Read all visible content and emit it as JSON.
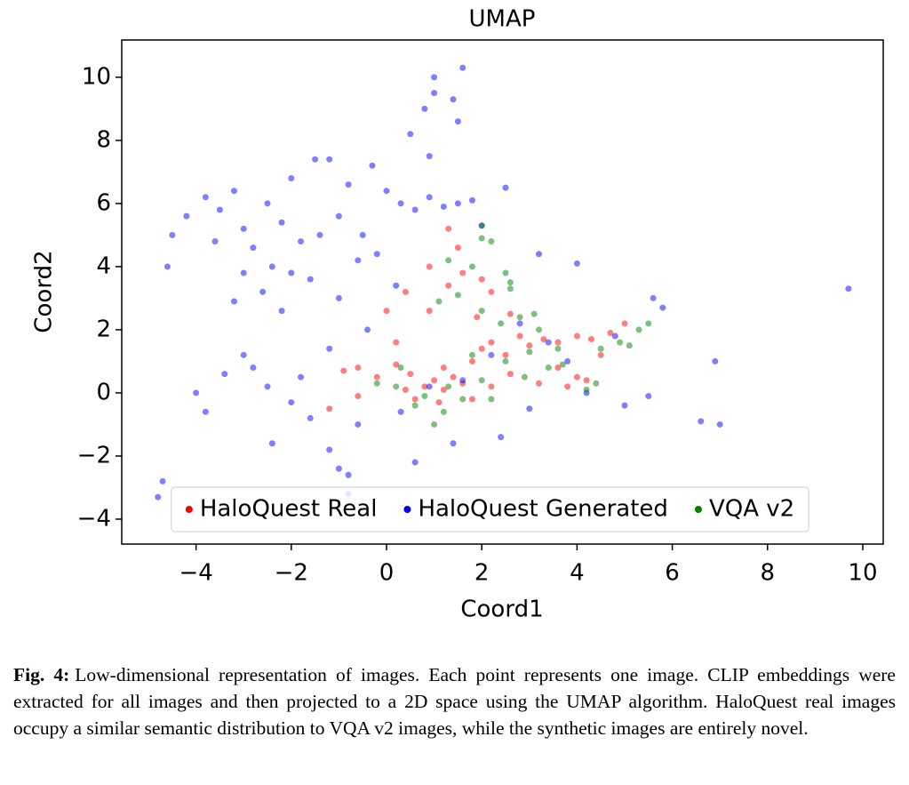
{
  "chart_data": {
    "type": "scatter",
    "title": "UMAP",
    "x_label": "Coord1",
    "y_label": "Coord2",
    "xlim": [
      -5.56,
      10.43
    ],
    "ylim": [
      -4.79,
      11.18
    ],
    "xticks": [
      {
        "value": -4,
        "label": "−4"
      },
      {
        "value": -2,
        "label": "−2"
      },
      0,
      2,
      4,
      6,
      8,
      10
    ],
    "yticks": [
      {
        "value": -4,
        "label": "−4"
      },
      {
        "value": -2,
        "label": "−2"
      },
      0,
      2,
      4,
      6,
      8,
      10
    ],
    "legend": "lower center",
    "grid": false,
    "series": [
      {
        "name": "HaloQuest Real",
        "color": "#ff0000",
        "x": [
          -0.9,
          -0.6,
          -0.2,
          0.2,
          0.5,
          0.8,
          1.0,
          1.2,
          1.4,
          1.6,
          1.8,
          2.0,
          2.2,
          2.5,
          2.8,
          3.0,
          3.3,
          3.6,
          4.0,
          4.3,
          4.7,
          5.0,
          4.5,
          4.0,
          3.6,
          3.2,
          2.6,
          2.2,
          1.8,
          1.1,
          0.6,
          0.9,
          1.3,
          1.6,
          2.0,
          2.2,
          1.5,
          1.3,
          0.9,
          0.4,
          0.0,
          -1.2,
          -0.6,
          0.2,
          2.6,
          1.9,
          3.8,
          4.2,
          1.2,
          0.4
        ],
        "y": [
          0.7,
          0.8,
          0.5,
          0.9,
          0.6,
          0.2,
          0.4,
          0.1,
          0.5,
          0.3,
          1.0,
          1.4,
          1.6,
          1.2,
          1.8,
          1.5,
          1.7,
          1.6,
          1.8,
          1.7,
          1.9,
          2.2,
          1.2,
          0.5,
          0.8,
          0.3,
          0.6,
          0.2,
          -0.2,
          -0.3,
          -0.2,
          2.6,
          3.4,
          3.8,
          3.6,
          3.2,
          4.6,
          5.2,
          4.0,
          3.2,
          2.6,
          -0.5,
          -0.1,
          1.6,
          2.5,
          2.4,
          0.2,
          0.4,
          0.8,
          0.1
        ]
      },
      {
        "name": "HaloQuest Generated",
        "color": "#0000ff",
        "x": [
          -4.5,
          -4.2,
          -3.8,
          -3.5,
          -3.2,
          -3.0,
          -2.8,
          -2.5,
          -2.2,
          -2.0,
          -1.8,
          -1.5,
          -1.2,
          -1.0,
          -0.8,
          -0.5,
          -0.2,
          0,
          0.3,
          0.6,
          0.9,
          1.2,
          1.5,
          1.8,
          -3.6,
          -3.0,
          -2.6,
          -2.2,
          -1.6,
          -1.0,
          -0.6,
          0.2,
          -4.6,
          -3.2,
          -2.4,
          -1.4,
          -0.3,
          0.5,
          0.8,
          1.0,
          1.0,
          1.6,
          1.4,
          0.9,
          1.5,
          -3.0,
          -2.8,
          -3.4,
          -2.5,
          -2.0,
          -1.8,
          -4.0,
          -3.8,
          -2.4,
          -1.6,
          -1.2,
          -1.0,
          -0.8,
          -0.6,
          -4.7,
          -4.8,
          -0.8,
          0.3,
          0.9,
          1.6,
          2.2,
          2.8,
          3.4,
          3.8,
          4.0,
          3.2,
          2.5,
          2.0,
          4.8,
          5.6,
          5.8,
          5.0,
          5.5,
          4.2,
          3.0,
          2.4,
          1.4,
          6.6,
          7.0,
          6.9,
          9.7,
          0.6,
          -2.0,
          -1.2,
          -0.4
        ],
        "y": [
          5.0,
          5.6,
          6.2,
          5.8,
          6.4,
          5.2,
          4.6,
          6.0,
          5.4,
          6.8,
          4.8,
          7.4,
          7.4,
          5.6,
          6.6,
          5.0,
          4.4,
          6.4,
          6.0,
          5.8,
          6.2,
          5.9,
          6.0,
          6.1,
          4.8,
          3.8,
          3.2,
          2.6,
          3.6,
          3.0,
          4.2,
          3.4,
          4.0,
          2.9,
          4.0,
          5.0,
          7.2,
          8.2,
          9.0,
          9.5,
          10.0,
          10.3,
          9.3,
          7.5,
          8.6,
          1.2,
          0.8,
          0.6,
          0.2,
          -0.3,
          0.5,
          0.0,
          -0.6,
          -1.6,
          -0.8,
          -1.8,
          -2.4,
          -2.6,
          -1.0,
          -2.8,
          -3.3,
          -3.2,
          -0.6,
          0.2,
          0.4,
          1.2,
          2.2,
          1.6,
          1.0,
          4.1,
          4.4,
          6.5,
          5.3,
          1.8,
          3.0,
          2.7,
          -0.4,
          -0.1,
          0.0,
          -0.5,
          -1.4,
          -1.6,
          -0.9,
          -1.0,
          1.0,
          3.3,
          -2.2,
          3.8,
          1.4,
          2.0
        ]
      },
      {
        "name": "VQA v2",
        "color": "#008000",
        "x": [
          1.3,
          2.0,
          2.0,
          2.2,
          2.6,
          2.5,
          1.8,
          1.5,
          2.0,
          2.4,
          2.8,
          3.2,
          3.0,
          2.5,
          2.0,
          1.6,
          1.2,
          1.0,
          0.6,
          0.2,
          -0.2,
          0.3,
          1.3,
          2.9,
          3.4,
          3.7,
          4.2,
          4.4,
          5.1,
          5.3,
          5.5,
          4.9,
          4.5,
          3.6,
          1.8,
          0.8,
          2.2,
          3.1,
          1.1,
          2.6
        ],
        "y": [
          4.2,
          5.3,
          4.9,
          4.8,
          3.3,
          3.8,
          4.0,
          3.1,
          2.6,
          2.2,
          2.4,
          2.0,
          1.3,
          1.0,
          0.4,
          -0.2,
          -0.6,
          -1.0,
          -0.4,
          0.2,
          0.3,
          0.8,
          0.2,
          0.5,
          0.8,
          0.9,
          0.1,
          0.3,
          1.5,
          2.0,
          2.2,
          1.6,
          1.4,
          1.4,
          1.2,
          -0.1,
          -0.2,
          2.5,
          2.9,
          3.5
        ]
      }
    ]
  },
  "caption": {
    "label": "Fig. 4:",
    "text": "Low-dimensional representation of images. Each point represents one image. CLIP embeddings were extracted for all images and then projected to a 2D space using the UMAP algorithm. HaloQuest real images occupy a similar semantic distribution to VQA v2 images, while the synthetic images are entirely novel."
  }
}
